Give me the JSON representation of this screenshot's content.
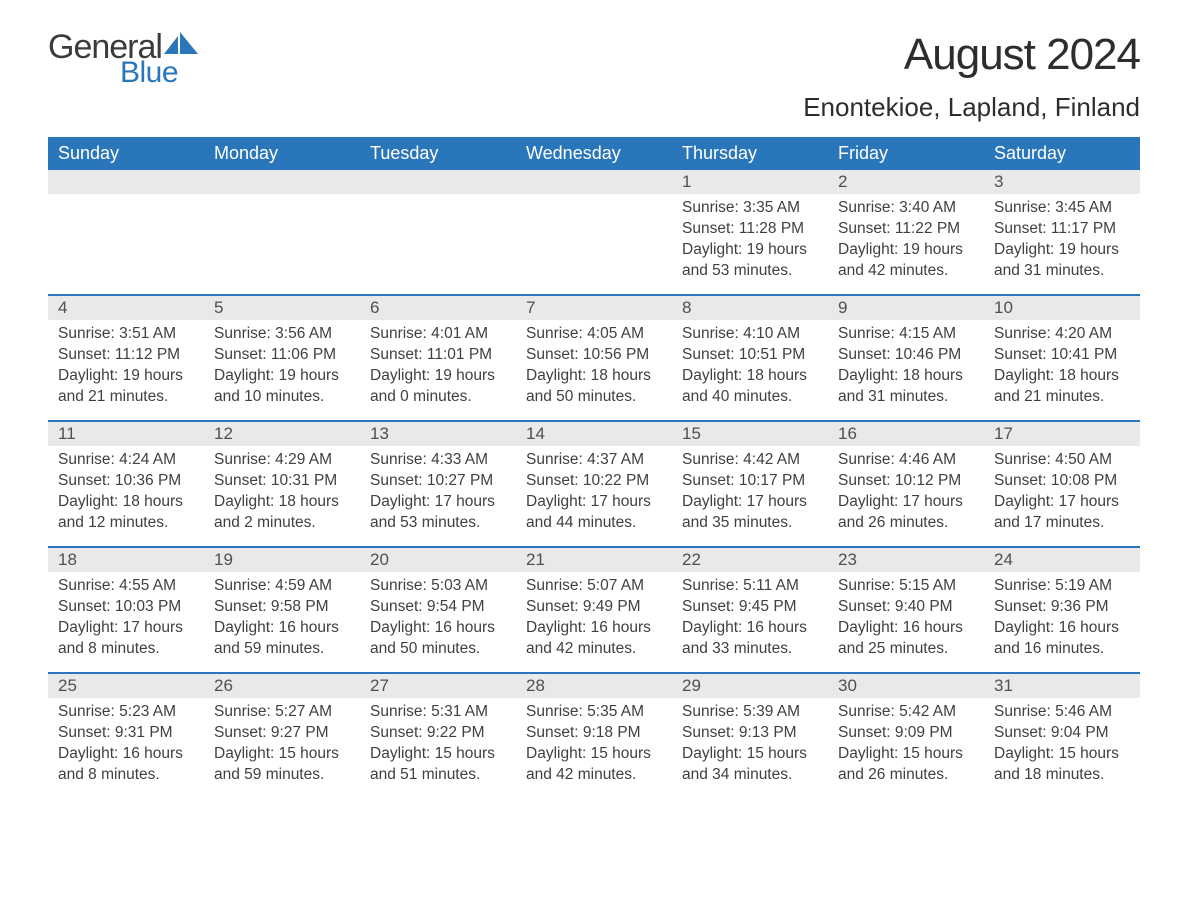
{
  "brand": {
    "general": "General",
    "blue": "Blue"
  },
  "colors": {
    "header_bg": "#2a76bb",
    "header_text": "#ffffff",
    "daynum_bg": "#e9e9e9",
    "text": "#404040",
    "rule": "#2a76bb",
    "logo_blue": "#2a76bb"
  },
  "title": "August 2024",
  "location": "Enontekioe, Lapland, Finland",
  "weekdays": [
    "Sunday",
    "Monday",
    "Tuesday",
    "Wednesday",
    "Thursday",
    "Friday",
    "Saturday"
  ],
  "weeks": [
    [
      null,
      null,
      null,
      null,
      {
        "day": "1",
        "sunrise": "Sunrise: 3:35 AM",
        "sunset": "Sunset: 11:28 PM",
        "daylight": "Daylight: 19 hours and 53 minutes."
      },
      {
        "day": "2",
        "sunrise": "Sunrise: 3:40 AM",
        "sunset": "Sunset: 11:22 PM",
        "daylight": "Daylight: 19 hours and 42 minutes."
      },
      {
        "day": "3",
        "sunrise": "Sunrise: 3:45 AM",
        "sunset": "Sunset: 11:17 PM",
        "daylight": "Daylight: 19 hours and 31 minutes."
      }
    ],
    [
      {
        "day": "4",
        "sunrise": "Sunrise: 3:51 AM",
        "sunset": "Sunset: 11:12 PM",
        "daylight": "Daylight: 19 hours and 21 minutes."
      },
      {
        "day": "5",
        "sunrise": "Sunrise: 3:56 AM",
        "sunset": "Sunset: 11:06 PM",
        "daylight": "Daylight: 19 hours and 10 minutes."
      },
      {
        "day": "6",
        "sunrise": "Sunrise: 4:01 AM",
        "sunset": "Sunset: 11:01 PM",
        "daylight": "Daylight: 19 hours and 0 minutes."
      },
      {
        "day": "7",
        "sunrise": "Sunrise: 4:05 AM",
        "sunset": "Sunset: 10:56 PM",
        "daylight": "Daylight: 18 hours and 50 minutes."
      },
      {
        "day": "8",
        "sunrise": "Sunrise: 4:10 AM",
        "sunset": "Sunset: 10:51 PM",
        "daylight": "Daylight: 18 hours and 40 minutes."
      },
      {
        "day": "9",
        "sunrise": "Sunrise: 4:15 AM",
        "sunset": "Sunset: 10:46 PM",
        "daylight": "Daylight: 18 hours and 31 minutes."
      },
      {
        "day": "10",
        "sunrise": "Sunrise: 4:20 AM",
        "sunset": "Sunset: 10:41 PM",
        "daylight": "Daylight: 18 hours and 21 minutes."
      }
    ],
    [
      {
        "day": "11",
        "sunrise": "Sunrise: 4:24 AM",
        "sunset": "Sunset: 10:36 PM",
        "daylight": "Daylight: 18 hours and 12 minutes."
      },
      {
        "day": "12",
        "sunrise": "Sunrise: 4:29 AM",
        "sunset": "Sunset: 10:31 PM",
        "daylight": "Daylight: 18 hours and 2 minutes."
      },
      {
        "day": "13",
        "sunrise": "Sunrise: 4:33 AM",
        "sunset": "Sunset: 10:27 PM",
        "daylight": "Daylight: 17 hours and 53 minutes."
      },
      {
        "day": "14",
        "sunrise": "Sunrise: 4:37 AM",
        "sunset": "Sunset: 10:22 PM",
        "daylight": "Daylight: 17 hours and 44 minutes."
      },
      {
        "day": "15",
        "sunrise": "Sunrise: 4:42 AM",
        "sunset": "Sunset: 10:17 PM",
        "daylight": "Daylight: 17 hours and 35 minutes."
      },
      {
        "day": "16",
        "sunrise": "Sunrise: 4:46 AM",
        "sunset": "Sunset: 10:12 PM",
        "daylight": "Daylight: 17 hours and 26 minutes."
      },
      {
        "day": "17",
        "sunrise": "Sunrise: 4:50 AM",
        "sunset": "Sunset: 10:08 PM",
        "daylight": "Daylight: 17 hours and 17 minutes."
      }
    ],
    [
      {
        "day": "18",
        "sunrise": "Sunrise: 4:55 AM",
        "sunset": "Sunset: 10:03 PM",
        "daylight": "Daylight: 17 hours and 8 minutes."
      },
      {
        "day": "19",
        "sunrise": "Sunrise: 4:59 AM",
        "sunset": "Sunset: 9:58 PM",
        "daylight": "Daylight: 16 hours and 59 minutes."
      },
      {
        "day": "20",
        "sunrise": "Sunrise: 5:03 AM",
        "sunset": "Sunset: 9:54 PM",
        "daylight": "Daylight: 16 hours and 50 minutes."
      },
      {
        "day": "21",
        "sunrise": "Sunrise: 5:07 AM",
        "sunset": "Sunset: 9:49 PM",
        "daylight": "Daylight: 16 hours and 42 minutes."
      },
      {
        "day": "22",
        "sunrise": "Sunrise: 5:11 AM",
        "sunset": "Sunset: 9:45 PM",
        "daylight": "Daylight: 16 hours and 33 minutes."
      },
      {
        "day": "23",
        "sunrise": "Sunrise: 5:15 AM",
        "sunset": "Sunset: 9:40 PM",
        "daylight": "Daylight: 16 hours and 25 minutes."
      },
      {
        "day": "24",
        "sunrise": "Sunrise: 5:19 AM",
        "sunset": "Sunset: 9:36 PM",
        "daylight": "Daylight: 16 hours and 16 minutes."
      }
    ],
    [
      {
        "day": "25",
        "sunrise": "Sunrise: 5:23 AM",
        "sunset": "Sunset: 9:31 PM",
        "daylight": "Daylight: 16 hours and 8 minutes."
      },
      {
        "day": "26",
        "sunrise": "Sunrise: 5:27 AM",
        "sunset": "Sunset: 9:27 PM",
        "daylight": "Daylight: 15 hours and 59 minutes."
      },
      {
        "day": "27",
        "sunrise": "Sunrise: 5:31 AM",
        "sunset": "Sunset: 9:22 PM",
        "daylight": "Daylight: 15 hours and 51 minutes."
      },
      {
        "day": "28",
        "sunrise": "Sunrise: 5:35 AM",
        "sunset": "Sunset: 9:18 PM",
        "daylight": "Daylight: 15 hours and 42 minutes."
      },
      {
        "day": "29",
        "sunrise": "Sunrise: 5:39 AM",
        "sunset": "Sunset: 9:13 PM",
        "daylight": "Daylight: 15 hours and 34 minutes."
      },
      {
        "day": "30",
        "sunrise": "Sunrise: 5:42 AM",
        "sunset": "Sunset: 9:09 PM",
        "daylight": "Daylight: 15 hours and 26 minutes."
      },
      {
        "day": "31",
        "sunrise": "Sunrise: 5:46 AM",
        "sunset": "Sunset: 9:04 PM",
        "daylight": "Daylight: 15 hours and 18 minutes."
      }
    ]
  ]
}
